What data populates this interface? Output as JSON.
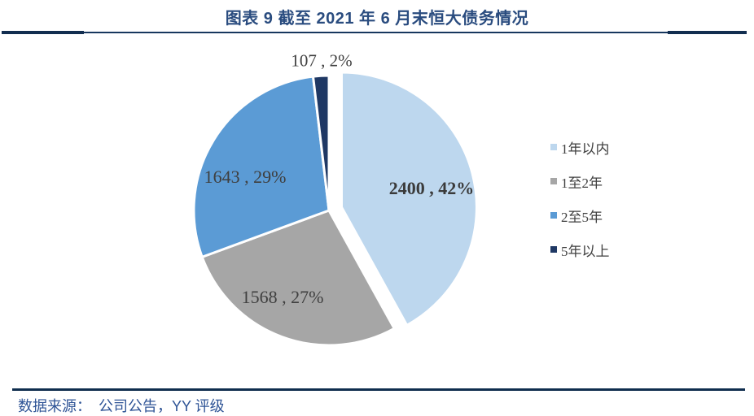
{
  "page": {
    "title": "图表 9 截至 2021 年 6 月末恒大债务情况"
  },
  "chart_data": {
    "type": "pie",
    "title": "图表 9 截至 2021 年 6 月末恒大债务情况",
    "categories": [
      "1年以内",
      "1至2年",
      "2至5年",
      "5年以上"
    ],
    "values": [
      2400,
      1568,
      1643,
      107
    ],
    "percent_labels": [
      "42%",
      "27%",
      "29%",
      "2%"
    ],
    "slice_labels": [
      "2400 , 42%",
      "1568 , 27%",
      "1643 , 29%",
      "107 , 2%"
    ],
    "colors": [
      "#BDD7EE",
      "#A6A6A6",
      "#5B9BD5",
      "#1F3864"
    ],
    "start_angle": "12 o'clock, clockwise",
    "exploded_slice": "1年以内",
    "legend_position": "right",
    "grid": false
  },
  "footer": {
    "source_label": "数据来源：",
    "source_detail": "公司公告，YY 评级"
  },
  "accent_colors": {
    "title_text": "#2A4C7F",
    "header_rule": "#17375E",
    "footer_rule": "#0F2D4E",
    "footer_text": "#2F5496",
    "label_text": "#3F3F3F"
  }
}
